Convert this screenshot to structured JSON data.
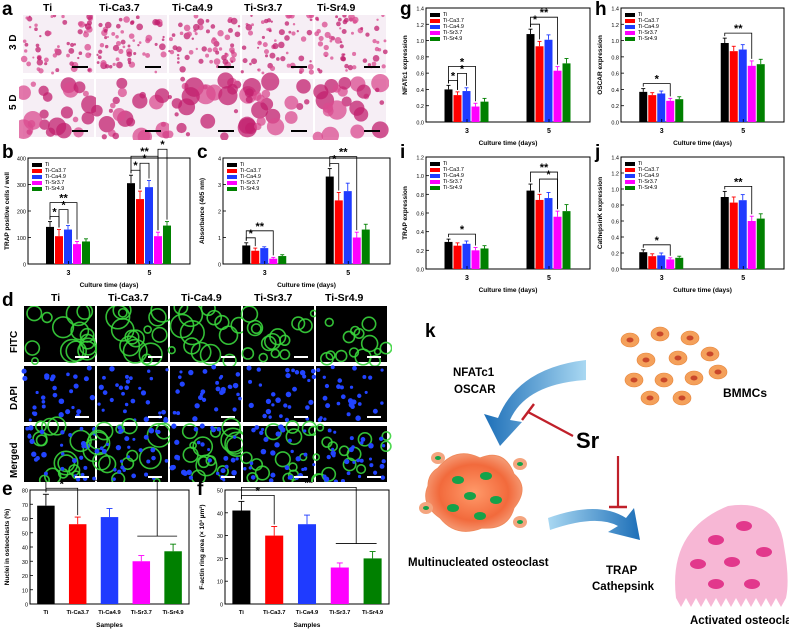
{
  "panel_labels": {
    "a": "a",
    "b": "b",
    "c": "c",
    "d": "d",
    "e": "e",
    "f": "f",
    "g": "g",
    "h": "h",
    "i": "i",
    "j": "j",
    "k": "k"
  },
  "groups": [
    "Ti",
    "Ti-Ca3.7",
    "Ti-Ca4.9",
    "Ti-Sr3.7",
    "Ti-Sr4.9"
  ],
  "group_colors": [
    "#000000",
    "#ff0000",
    "#1f3bff",
    "#ff00ff",
    "#008000"
  ],
  "panel_a": {
    "row_labels": [
      "3 D",
      "5 D"
    ]
  },
  "panel_d": {
    "row_labels": [
      "FITC",
      "DAPI",
      "Merged"
    ]
  },
  "panel_k": {
    "bmmcs": "BMMCs",
    "nfatc1": "NFATc1",
    "oscar": "OSCAR",
    "sr": "Sr",
    "trap": "TRAP",
    "cathepsink": "Cathepsink",
    "multinucleated": "Multinucleated osteoclast",
    "activated": "Activated osteoclast"
  },
  "chart_data": [
    {
      "id": "b",
      "type": "bar",
      "xlabel": "Culture time (days)",
      "ylabel": "TRAP positive cells / well",
      "categories": [
        "3",
        "5"
      ],
      "ylim": [
        0,
        400
      ],
      "yticks": [
        0,
        100,
        200,
        300,
        400
      ],
      "series": [
        {
          "name": "Ti",
          "values": [
            140,
            305
          ]
        },
        {
          "name": "Ti-Ca3.7",
          "values": [
            105,
            245
          ]
        },
        {
          "name": "Ti-Ca4.9",
          "values": [
            130,
            290
          ]
        },
        {
          "name": "Ti-Sr3.7",
          "values": [
            75,
            105
          ]
        },
        {
          "name": "Ti-Sr4.9",
          "values": [
            85,
            145
          ]
        }
      ],
      "errors": [
        [
          20,
          30
        ],
        [
          25,
          30
        ],
        [
          15,
          25
        ],
        [
          10,
          15
        ],
        [
          10,
          15
        ]
      ],
      "annotations": [
        "*",
        "*",
        "**",
        "*",
        "*",
        "**",
        "*"
      ]
    },
    {
      "id": "c",
      "type": "bar",
      "xlabel": "Culture time (days)",
      "ylabel": "Absorbance (405 nm)",
      "categories": [
        "3",
        "5"
      ],
      "ylim": [
        0,
        4
      ],
      "yticks": [
        0,
        1,
        2,
        3,
        4
      ],
      "series": [
        {
          "name": "Ti",
          "values": [
            0.7,
            3.3
          ]
        },
        {
          "name": "Ti-Ca3.7",
          "values": [
            0.5,
            2.4
          ]
        },
        {
          "name": "Ti-Ca4.9",
          "values": [
            0.6,
            2.75
          ]
        },
        {
          "name": "Ti-Sr3.7",
          "values": [
            0.2,
            1.0
          ]
        },
        {
          "name": "Ti-Sr4.9",
          "values": [
            0.3,
            1.3
          ]
        }
      ],
      "errors": [
        [
          0.1,
          0.3
        ],
        [
          0.1,
          0.3
        ],
        [
          0.05,
          0.3
        ],
        [
          0.05,
          0.2
        ],
        [
          0.05,
          0.2
        ]
      ],
      "annotations": [
        "*",
        "**",
        "*",
        "**"
      ]
    },
    {
      "id": "e",
      "type": "bar",
      "xlabel": "Samples",
      "ylabel": "Nuclei in osteoclasts (%)",
      "categories": [
        "Ti",
        "Ti-Ca3.7",
        "Ti-Ca4.9",
        "Ti-Sr3.7",
        "Ti-Sr4.9"
      ],
      "ylim": [
        0,
        80
      ],
      "yticks": [
        0,
        10,
        20,
        30,
        40,
        50,
        60,
        70,
        80
      ],
      "values": [
        69,
        56,
        61,
        30,
        37
      ],
      "errors": [
        8,
        5,
        6,
        4,
        5
      ],
      "annotations": [
        "*",
        "**"
      ]
    },
    {
      "id": "f",
      "type": "bar",
      "xlabel": "Samples",
      "ylabel": "F-actin ring area (× 10³ µm²)",
      "categories": [
        "Ti",
        "Ti-Ca3.7",
        "Ti-Ca4.9",
        "Ti-Sr3.7",
        "Ti-Sr4.9"
      ],
      "ylim": [
        0,
        50
      ],
      "yticks": [
        0,
        10,
        20,
        30,
        40,
        50
      ],
      "values": [
        41,
        30,
        35,
        16,
        20
      ],
      "errors": [
        4,
        4,
        4,
        2,
        3
      ],
      "annotations": [
        "*",
        "**"
      ]
    },
    {
      "id": "g",
      "type": "bar",
      "xlabel": "Culture time (days)",
      "ylabel": "NFATc1 expression",
      "categories": [
        "3",
        "5"
      ],
      "ylim": [
        0,
        1.4
      ],
      "yticks": [
        0.0,
        0.2,
        0.4,
        0.6,
        0.8,
        1.0,
        1.2,
        1.4
      ],
      "series": [
        {
          "name": "Ti",
          "values": [
            0.4,
            1.08
          ]
        },
        {
          "name": "Ti-Ca3.7",
          "values": [
            0.33,
            0.93
          ]
        },
        {
          "name": "Ti-Ca4.9",
          "values": [
            0.38,
            1.01
          ]
        },
        {
          "name": "Ti-Sr3.7",
          "values": [
            0.19,
            0.63
          ]
        },
        {
          "name": "Ti-Sr4.9",
          "values": [
            0.25,
            0.72
          ]
        }
      ],
      "errors": [
        [
          0.05,
          0.06
        ],
        [
          0.04,
          0.06
        ],
        [
          0.04,
          0.06
        ],
        [
          0.04,
          0.05
        ],
        [
          0.04,
          0.06
        ]
      ],
      "annotations": [
        "*",
        "*",
        "*",
        "*",
        "**"
      ]
    },
    {
      "id": "h",
      "type": "bar",
      "xlabel": "Culture time (days)",
      "ylabel": "OSCAR expression",
      "categories": [
        "3",
        "5"
      ],
      "ylim": [
        0,
        1.4
      ],
      "yticks": [
        0.0,
        0.2,
        0.4,
        0.6,
        0.8,
        1.0,
        1.2,
        1.4
      ],
      "series": [
        {
          "name": "Ti",
          "values": [
            0.37,
            0.97
          ]
        },
        {
          "name": "Ti-Ca3.7",
          "values": [
            0.33,
            0.87
          ]
        },
        {
          "name": "Ti-Ca4.9",
          "values": [
            0.35,
            0.89
          ]
        },
        {
          "name": "Ti-Sr3.7",
          "values": [
            0.26,
            0.69
          ]
        },
        {
          "name": "Ti-Sr4.9",
          "values": [
            0.28,
            0.71
          ]
        }
      ],
      "errors": [
        [
          0.04,
          0.06
        ],
        [
          0.03,
          0.06
        ],
        [
          0.03,
          0.06
        ],
        [
          0.03,
          0.06
        ],
        [
          0.03,
          0.06
        ]
      ],
      "annotations": [
        "*",
        "**"
      ]
    },
    {
      "id": "i",
      "type": "bar",
      "xlabel": "Culture time (days)",
      "ylabel": "TRAP expression",
      "categories": [
        "3",
        "5"
      ],
      "ylim": [
        0,
        1.2
      ],
      "yticks": [
        0.0,
        0.2,
        0.4,
        0.6,
        0.8,
        1.0,
        1.2
      ],
      "series": [
        {
          "name": "Ti",
          "values": [
            0.29,
            0.84
          ]
        },
        {
          "name": "Ti-Ca3.7",
          "values": [
            0.25,
            0.74
          ]
        },
        {
          "name": "Ti-Ca4.9",
          "values": [
            0.27,
            0.76
          ]
        },
        {
          "name": "Ti-Sr3.7",
          "values": [
            0.2,
            0.56
          ]
        },
        {
          "name": "Ti-Sr4.9",
          "values": [
            0.22,
            0.62
          ]
        }
      ],
      "errors": [
        [
          0.03,
          0.07
        ],
        [
          0.03,
          0.06
        ],
        [
          0.03,
          0.06
        ],
        [
          0.03,
          0.06
        ],
        [
          0.03,
          0.07
        ]
      ],
      "annotations": [
        "*",
        "*",
        "**"
      ]
    },
    {
      "id": "j",
      "type": "bar",
      "xlabel": "Culture time (days)",
      "ylabel": "CathepsinK expression",
      "categories": [
        "3",
        "5"
      ],
      "ylim": [
        0,
        1.4
      ],
      "yticks": [
        0.0,
        0.2,
        0.4,
        0.6,
        0.8,
        1.0,
        1.2,
        1.4
      ],
      "series": [
        {
          "name": "Ti",
          "values": [
            0.21,
            0.9
          ]
        },
        {
          "name": "Ti-Ca3.7",
          "values": [
            0.16,
            0.83
          ]
        },
        {
          "name": "Ti-Ca4.9",
          "values": [
            0.17,
            0.86
          ]
        },
        {
          "name": "Ti-Sr3.7",
          "values": [
            0.12,
            0.6
          ]
        },
        {
          "name": "Ti-Sr4.9",
          "values": [
            0.14,
            0.63
          ]
        }
      ],
      "errors": [
        [
          0.03,
          0.07
        ],
        [
          0.03,
          0.07
        ],
        [
          0.03,
          0.07
        ],
        [
          0.02,
          0.06
        ],
        [
          0.02,
          0.06
        ]
      ],
      "annotations": [
        "*",
        "**"
      ]
    }
  ]
}
